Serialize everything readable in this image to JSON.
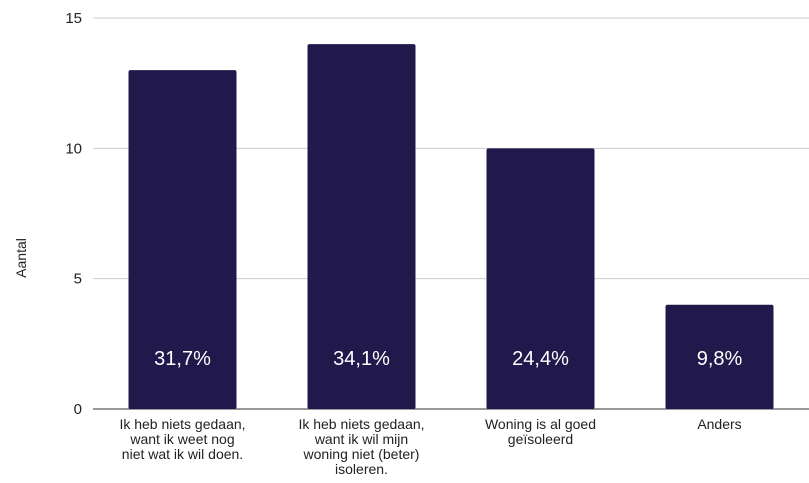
{
  "chart_data": {
    "type": "bar",
    "categories": [
      [
        "Ik heb niets gedaan,",
        "want ik weet nog",
        "niet wat ik wil doen."
      ],
      [
        "Ik heb niets gedaan,",
        "want ik wil mijn",
        "woning niet (beter)",
        "isoleren."
      ],
      [
        "Woning is al goed",
        "geïsoleerd"
      ],
      [
        "Anders"
      ]
    ],
    "values": [
      13,
      14,
      10,
      4
    ],
    "data_labels": [
      "31,7%",
      "34,1%",
      "24,4%",
      "9,8%"
    ],
    "title": "",
    "xlabel": "",
    "ylabel": "Aantal",
    "ylim": [
      0,
      15
    ],
    "yticks": [
      "0",
      "5",
      "10",
      "15"
    ],
    "grid": true,
    "legend": "none",
    "colors": {
      "bar": "#21184c",
      "grid": "#cccccc",
      "axis": "#333333"
    }
  }
}
